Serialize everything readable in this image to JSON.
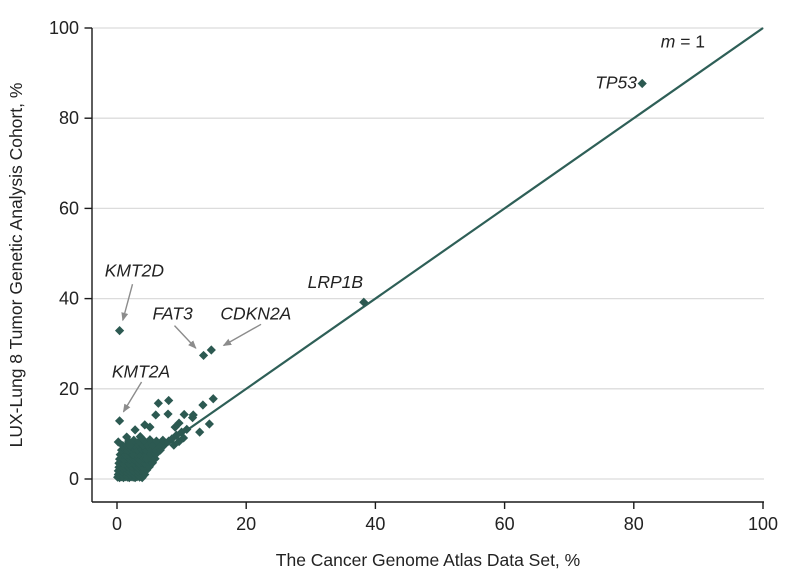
{
  "chart_data": {
    "type": "scatter",
    "title": "",
    "xlabel": "The Cancer Genome Atlas Data Set, %",
    "ylabel": "LUX-Lung 8 Tumor Genetic Analysis Cohort, %",
    "xlim": [
      0,
      100
    ],
    "ylim": [
      0,
      100
    ],
    "xticks": [
      0,
      20,
      40,
      60,
      80,
      100
    ],
    "yticks": [
      0,
      20,
      40,
      60,
      80,
      100
    ],
    "grid": "horizontal",
    "legend": "none",
    "marker": "diamond",
    "colors": {
      "marker": "#2c5951",
      "line": "#2e5f57",
      "grid": "#dcdcdc",
      "axis": "#1a1a1a",
      "text": "#222222",
      "arrow": "#8c8c8c"
    },
    "reference_line": {
      "slope": 1,
      "intercept": 0,
      "label_italic": "m",
      "label_rest": " = 1",
      "label_pos": [
        87.6,
        97.0
      ]
    },
    "labeled_points": [
      {
        "gene": "TP53",
        "x": 81.3,
        "y": 87.7,
        "label_pos": [
          80.5,
          87.9
        ],
        "anchor": "end"
      },
      {
        "gene": "LRP1B",
        "x": 38.2,
        "y": 39.2,
        "label_pos": [
          33.8,
          43.7
        ],
        "anchor": "middle"
      },
      {
        "gene": "KMT2D",
        "x": 0.4,
        "y": 32.9,
        "label_pos": [
          -1.9,
          46.2
        ],
        "anchor": "start",
        "arrow": [
          [
            2.4,
            43.2
          ],
          [
            0.9,
            35.2
          ]
        ]
      },
      {
        "gene": "FAT3",
        "x": 13.4,
        "y": 27.4,
        "label_pos": [
          5.5,
          36.7
        ],
        "anchor": "start",
        "arrow": [
          [
            8.9,
            34.0
          ],
          [
            12.2,
            29.0
          ]
        ]
      },
      {
        "gene": "CDKN2A",
        "x": 14.6,
        "y": 28.6,
        "label_pos": [
          16.0,
          36.7
        ],
        "anchor": "start",
        "arrow": [
          [
            22.3,
            34.3
          ],
          [
            16.5,
            29.6
          ]
        ]
      },
      {
        "gene": "KMT2A",
        "x": 0.4,
        "y": 12.9,
        "label_pos": [
          -0.8,
          23.8
        ],
        "anchor": "start",
        "arrow": [
          [
            3.8,
            21.5
          ],
          [
            1.0,
            14.9
          ]
        ]
      }
    ],
    "points": [
      [
        0.1,
        0.4
      ],
      [
        0.4,
        0.3
      ],
      [
        0.7,
        0.5
      ],
      [
        1.0,
        0.3
      ],
      [
        1.3,
        0.5
      ],
      [
        1.6,
        0.4
      ],
      [
        1.9,
        0.3
      ],
      [
        2.2,
        0.5
      ],
      [
        2.5,
        0.4
      ],
      [
        2.8,
        0.3
      ],
      [
        3.1,
        0.5
      ],
      [
        3.5,
        0.4
      ],
      [
        3.9,
        0.3
      ],
      [
        0.2,
        1.0
      ],
      [
        0.6,
        1.2
      ],
      [
        0.9,
        0.9
      ],
      [
        1.2,
        1.1
      ],
      [
        1.5,
        1.0
      ],
      [
        1.8,
        1.2
      ],
      [
        2.1,
        0.9
      ],
      [
        2.4,
        1.1
      ],
      [
        2.7,
        1.0
      ],
      [
        3.0,
        1.2
      ],
      [
        3.4,
        0.9
      ],
      [
        3.8,
        1.1
      ],
      [
        4.3,
        1.0
      ],
      [
        0.2,
        1.8
      ],
      [
        0.5,
        2.0
      ],
      [
        0.8,
        1.7
      ],
      [
        1.1,
        1.9
      ],
      [
        1.4,
        1.8
      ],
      [
        1.7,
        2.0
      ],
      [
        2.0,
        1.7
      ],
      [
        2.3,
        1.9
      ],
      [
        2.6,
        1.8
      ],
      [
        3.0,
        2.0
      ],
      [
        3.3,
        1.7
      ],
      [
        3.7,
        1.9
      ],
      [
        4.1,
        1.8
      ],
      [
        4.6,
        2.0
      ],
      [
        0.3,
        2.6
      ],
      [
        0.6,
        2.8
      ],
      [
        0.9,
        2.5
      ],
      [
        1.2,
        2.7
      ],
      [
        1.5,
        2.9
      ],
      [
        1.8,
        2.6
      ],
      [
        2.1,
        2.8
      ],
      [
        2.4,
        2.7
      ],
      [
        2.8,
        2.9
      ],
      [
        3.2,
        2.6
      ],
      [
        3.6,
        2.8
      ],
      [
        4.0,
        2.7
      ],
      [
        4.5,
        2.9
      ],
      [
        5.0,
        2.7
      ],
      [
        0.3,
        3.5
      ],
      [
        0.7,
        3.7
      ],
      [
        1.0,
        3.4
      ],
      [
        1.3,
        3.6
      ],
      [
        1.6,
        3.8
      ],
      [
        1.9,
        3.5
      ],
      [
        2.2,
        3.7
      ],
      [
        2.6,
        3.6
      ],
      [
        3.0,
        3.8
      ],
      [
        3.4,
        3.5
      ],
      [
        3.8,
        3.7
      ],
      [
        4.3,
        3.6
      ],
      [
        4.9,
        3.8
      ],
      [
        5.5,
        3.6
      ],
      [
        0.4,
        4.4
      ],
      [
        0.8,
        4.6
      ],
      [
        1.1,
        4.3
      ],
      [
        1.4,
        4.5
      ],
      [
        1.7,
        4.7
      ],
      [
        2.0,
        4.4
      ],
      [
        2.4,
        4.6
      ],
      [
        2.8,
        4.5
      ],
      [
        3.2,
        4.7
      ],
      [
        3.6,
        4.4
      ],
      [
        4.1,
        4.6
      ],
      [
        4.6,
        4.5
      ],
      [
        5.2,
        4.7
      ],
      [
        5.9,
        4.5
      ],
      [
        0.5,
        5.4
      ],
      [
        0.9,
        5.6
      ],
      [
        1.3,
        5.3
      ],
      [
        1.7,
        5.5
      ],
      [
        2.1,
        5.7
      ],
      [
        2.5,
        5.4
      ],
      [
        3.0,
        5.6
      ],
      [
        3.5,
        5.5
      ],
      [
        4.0,
        5.7
      ],
      [
        4.6,
        5.4
      ],
      [
        5.2,
        5.6
      ],
      [
        6.0,
        5.5
      ],
      [
        0.7,
        6.4
      ],
      [
        1.2,
        6.6
      ],
      [
        1.7,
        6.3
      ],
      [
        2.2,
        6.5
      ],
      [
        2.7,
        6.7
      ],
      [
        3.2,
        6.4
      ],
      [
        3.8,
        6.6
      ],
      [
        4.4,
        6.5
      ],
      [
        5.1,
        6.7
      ],
      [
        5.9,
        6.5
      ],
      [
        6.7,
        6.4
      ],
      [
        0.9,
        7.4
      ],
      [
        1.5,
        7.6
      ],
      [
        2.1,
        7.3
      ],
      [
        2.7,
        7.5
      ],
      [
        3.3,
        7.7
      ],
      [
        4.0,
        7.4
      ],
      [
        4.7,
        7.6
      ],
      [
        5.5,
        7.5
      ],
      [
        6.4,
        7.7
      ],
      [
        7.3,
        7.5
      ],
      [
        1.8,
        8.4
      ],
      [
        2.6,
        8.6
      ],
      [
        3.4,
        8.3
      ],
      [
        4.2,
        8.5
      ],
      [
        5.1,
        8.7
      ],
      [
        6.1,
        8.4
      ],
      [
        7.1,
        8.6
      ],
      [
        8.0,
        8.4
      ],
      [
        8.5,
        8.9
      ],
      [
        9.2,
        9.7
      ],
      [
        10.0,
        10.4
      ],
      [
        10.8,
        11.0
      ],
      [
        8.8,
        7.5
      ],
      [
        9.6,
        8.3
      ],
      [
        10.3,
        9.1
      ],
      [
        0.2,
        8.2
      ],
      [
        1.5,
        9.3
      ],
      [
        2.8,
        10.9
      ],
      [
        3.6,
        9.4
      ],
      [
        4.3,
        12.0
      ],
      [
        5.1,
        11.5
      ],
      [
        2.0,
        7.5
      ],
      [
        6.0,
        14.2
      ],
      [
        6.4,
        16.8
      ],
      [
        8.0,
        17.4
      ],
      [
        7.9,
        14.4
      ],
      [
        9.6,
        12.4
      ],
      [
        10.4,
        14.3
      ],
      [
        11.7,
        13.6
      ],
      [
        9.0,
        11.5
      ],
      [
        12.8,
        10.4
      ],
      [
        14.3,
        12.2
      ],
      [
        13.3,
        16.4
      ],
      [
        14.9,
        17.8
      ],
      [
        11.8,
        14.2
      ]
    ]
  }
}
